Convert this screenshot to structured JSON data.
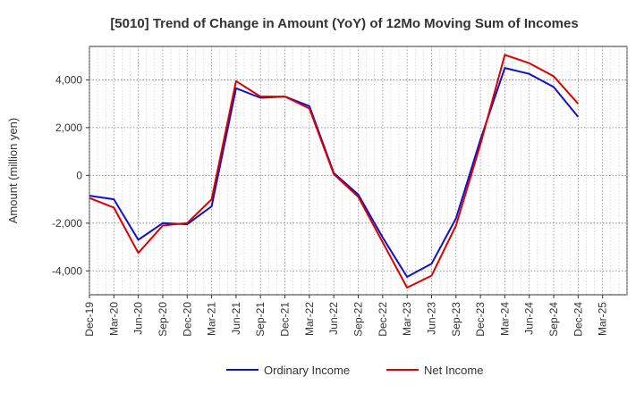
{
  "chart_data": {
    "type": "line",
    "title": "[5010]  Trend of Change in Amount (YoY) of 12Mo Moving Sum of Incomes",
    "xlabel": "",
    "ylabel": "Amount (million yen)",
    "categories": [
      "Dec-19",
      "Mar-20",
      "Jun-20",
      "Sep-20",
      "Dec-20",
      "Mar-21",
      "Jun-21",
      "Sep-21",
      "Dec-21",
      "Mar-22",
      "Jun-22",
      "Sep-22",
      "Dec-22",
      "Mar-23",
      "Jun-23",
      "Sep-23",
      "Dec-23",
      "Mar-24",
      "Jun-24",
      "Sep-24",
      "Dec-24",
      "Mar-25"
    ],
    "ylim": [
      -5000,
      5400
    ],
    "yticks": [
      -4000,
      -2000,
      0,
      2000,
      4000
    ],
    "ytick_labels": [
      "-4,000",
      "-2,000",
      "0",
      "2,000",
      "4,000"
    ],
    "grid": true,
    "legend_position": "bottom",
    "series": [
      {
        "name": "Ordinary Income",
        "color": "#1010cc",
        "values": [
          -850,
          -1000,
          -2700,
          -2000,
          -2050,
          -1300,
          3650,
          3250,
          3300,
          2900,
          100,
          -800,
          -2600,
          -4250,
          -3700,
          -1800,
          1500,
          4500,
          4250,
          3700,
          2450,
          null
        ]
      },
      {
        "name": "Net Income",
        "color": "#dd0000",
        "values": [
          -950,
          -1350,
          -3250,
          -2100,
          -2000,
          -1000,
          3950,
          3300,
          3300,
          2800,
          50,
          -900,
          -2800,
          -4700,
          -4200,
          -2100,
          1300,
          5050,
          4700,
          4150,
          3000,
          null
        ]
      }
    ]
  }
}
